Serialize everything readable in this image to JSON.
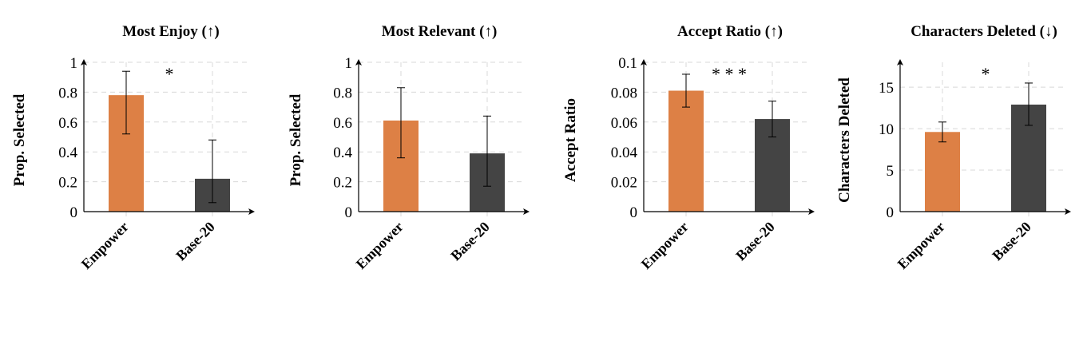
{
  "colors": {
    "Empower": "#dd8045",
    "Base-20": "#444444",
    "grid": "#d8d8d8",
    "axis": "#000000"
  },
  "chart_data": [
    {
      "type": "bar",
      "title": "Most Enjoy (↑)",
      "ylabel": "Prop. Selected",
      "categories": [
        "Empower",
        "Base-20"
      ],
      "values": [
        0.78,
        0.22
      ],
      "error_low": [
        0.52,
        0.06
      ],
      "error_high": [
        0.94,
        0.48
      ],
      "ylim": [
        0,
        1
      ],
      "yticks": [
        0,
        0.2,
        0.4,
        0.6,
        0.8,
        1
      ],
      "ytick_labels": [
        "0",
        "0.2",
        "0.4",
        "0.6",
        "0.8",
        "1"
      ],
      "annotation": "*",
      "grid": true
    },
    {
      "type": "bar",
      "title": "Most Relevant (↑)",
      "ylabel": "Prop. Selected",
      "categories": [
        "Empower",
        "Base-20"
      ],
      "values": [
        0.61,
        0.39
      ],
      "error_low": [
        0.36,
        0.17
      ],
      "error_high": [
        0.83,
        0.64
      ],
      "ylim": [
        0,
        1
      ],
      "yticks": [
        0,
        0.2,
        0.4,
        0.6,
        0.8,
        1
      ],
      "ytick_labels": [
        "0",
        "0.2",
        "0.4",
        "0.6",
        "0.8",
        "1"
      ],
      "annotation": "",
      "grid": true
    },
    {
      "type": "bar",
      "title": "Accept Ratio (↑)",
      "ylabel": "Accept Ratio",
      "categories": [
        "Empower",
        "Base-20"
      ],
      "values": [
        0.081,
        0.062
      ],
      "error_low": [
        0.07,
        0.05
      ],
      "error_high": [
        0.092,
        0.074
      ],
      "ylim": [
        0,
        0.1
      ],
      "yticks": [
        0,
        0.02,
        0.04,
        0.06,
        0.08,
        0.1
      ],
      "ytick_labels": [
        "0",
        "0.02",
        "0.04",
        "0.06",
        "0.08",
        "0.1"
      ],
      "annotation": "* * *",
      "grid": true
    },
    {
      "type": "bar",
      "title": "Characters Deleted (↓)",
      "ylabel": "Characters Deleted",
      "categories": [
        "Empower",
        "Base-20"
      ],
      "values": [
        9.6,
        12.9
      ],
      "error_low": [
        8.4,
        10.4
      ],
      "error_high": [
        10.8,
        15.5
      ],
      "ylim": [
        0,
        18
      ],
      "yticks": [
        0,
        5,
        10,
        15
      ],
      "ytick_labels": [
        "0",
        "5",
        "10",
        "15"
      ],
      "annotation": "*",
      "grid": true
    }
  ]
}
